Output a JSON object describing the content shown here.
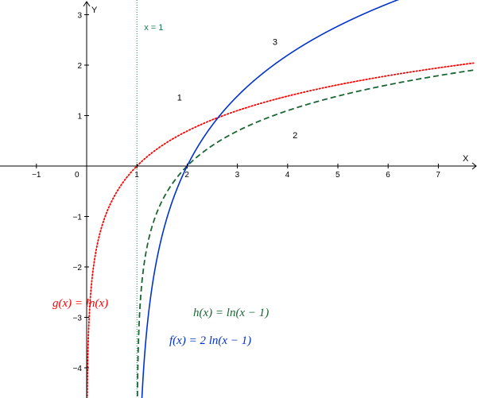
{
  "chart_data": {
    "type": "line",
    "xlim": [
      -3.4,
      7.7
    ],
    "ylim": [
      -4.55,
      3.3
    ],
    "grid": false,
    "axes": {
      "x_name": "X",
      "y_name": "Y"
    },
    "x_ticks": [
      {
        "value": -1,
        "label": "−1"
      },
      {
        "value": 1,
        "label": "1"
      },
      {
        "value": 2,
        "label": "2"
      },
      {
        "value": 3,
        "label": "3"
      },
      {
        "value": 4,
        "label": "4"
      },
      {
        "value": 5,
        "label": "5"
      },
      {
        "value": 6,
        "label": "6"
      },
      {
        "value": 7,
        "label": "7"
      }
    ],
    "y_ticks": [
      {
        "value": 3,
        "label": "3"
      },
      {
        "value": 2,
        "label": "2"
      },
      {
        "value": 1,
        "label": "1"
      },
      {
        "value": -1,
        "label": "−1"
      },
      {
        "value": -2,
        "label": "−2"
      },
      {
        "value": -3,
        "label": "−3"
      },
      {
        "value": -4,
        "label": "−4"
      }
    ],
    "origin_label": "0",
    "asymptote": {
      "x": 1,
      "label": "x = 1",
      "color": "#1a7a4a"
    },
    "series": [
      {
        "id": "g",
        "formula": "ln(x)",
        "shift": 0,
        "scale": 1,
        "color": "#ff0000",
        "style": "dotted",
        "domain": [
          0.0,
          7.7
        ],
        "equation": "g(x)  =  ln(x)",
        "number_label": "1",
        "number_at": [
          1.8,
          1.3
        ]
      },
      {
        "id": "h",
        "formula": "ln(x - 1)",
        "shift": 1,
        "scale": 1,
        "color": "#1a6633",
        "style": "dashed",
        "domain": [
          1.0,
          7.7
        ],
        "equation": "h(x)  =  ln(x − 1)",
        "number_label": "2",
        "number_at": [
          4.1,
          0.55
        ]
      },
      {
        "id": "f",
        "formula": "2 ln(x - 1)",
        "shift": 1,
        "scale": 2,
        "color": "#0033cc",
        "style": "solid",
        "domain": [
          1.0,
          7.7
        ],
        "equation": "f(x)  =  2  ln(x − 1)",
        "number_label": "3",
        "number_at": [
          3.7,
          2.4
        ]
      }
    ]
  }
}
